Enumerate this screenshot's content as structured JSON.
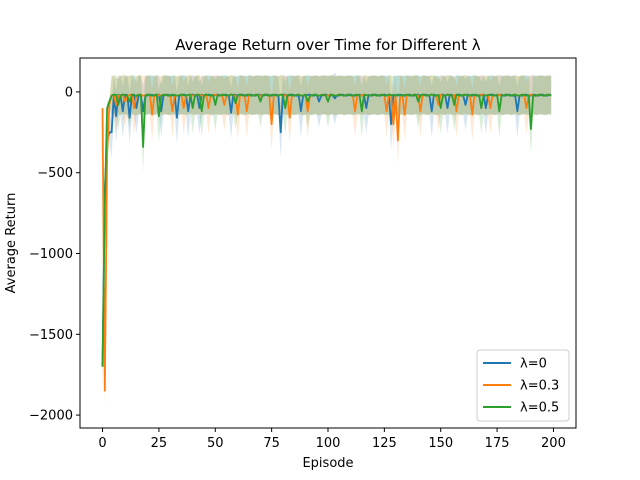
{
  "chart_data": {
    "type": "line",
    "title": "Average Return over Time for Different λ",
    "xlabel": "Episode",
    "ylabel": "Average Return",
    "xlim": [
      -10,
      210
    ],
    "ylim": [
      -2080,
      210
    ],
    "x_ticks": [
      0,
      25,
      50,
      75,
      100,
      125,
      150,
      175,
      200
    ],
    "y_ticks": [
      0,
      -500,
      -1000,
      -1500,
      -2000
    ],
    "x_tick_labels": [
      "0",
      "25",
      "50",
      "75",
      "100",
      "125",
      "150",
      "175",
      "200"
    ],
    "y_tick_labels": [
      "0",
      "−500",
      "−1000",
      "−1500",
      "−2000"
    ],
    "legend_position": "lower-right",
    "grid": false,
    "band_halfwidth": 120,
    "episodes": 200,
    "series": [
      {
        "name": "λ=0",
        "color": "#1f77b4",
        "start": [
          -1700,
          -600,
          -300,
          -250
        ],
        "base": -20,
        "dips": [
          [
            4,
            -250
          ],
          [
            6,
            -150
          ],
          [
            9,
            -120
          ],
          [
            12,
            -160
          ],
          [
            15,
            -100
          ],
          [
            18,
            -120
          ],
          [
            26,
            -120
          ],
          [
            33,
            -160
          ],
          [
            38,
            -120
          ],
          [
            43,
            -100
          ],
          [
            57,
            -130
          ],
          [
            79,
            -250
          ],
          [
            88,
            -120
          ],
          [
            96,
            -60
          ],
          [
            103,
            -40
          ],
          [
            117,
            -100
          ],
          [
            128,
            -200
          ],
          [
            146,
            -120
          ],
          [
            153,
            -100
          ],
          [
            161,
            -80
          ],
          [
            170,
            -100
          ],
          [
            184,
            -120
          ]
        ]
      },
      {
        "name": "λ=0.3",
        "color": "#ff7f0e",
        "start": [
          -100,
          -1850,
          -400,
          -80
        ],
        "base": -20,
        "dips": [
          [
            6,
            -80
          ],
          [
            10,
            -60
          ],
          [
            14,
            -100
          ],
          [
            22,
            -140
          ],
          [
            31,
            -120
          ],
          [
            36,
            -100
          ],
          [
            47,
            -100
          ],
          [
            54,
            -80
          ],
          [
            60,
            -140
          ],
          [
            64,
            -120
          ],
          [
            75,
            -200
          ],
          [
            83,
            -160
          ],
          [
            91,
            -120
          ],
          [
            112,
            -120
          ],
          [
            126,
            -120
          ],
          [
            129,
            -200
          ],
          [
            131,
            -300
          ],
          [
            134,
            -140
          ],
          [
            141,
            -120
          ],
          [
            149,
            -80
          ],
          [
            157,
            -120
          ],
          [
            164,
            -140
          ],
          [
            172,
            -100
          ],
          [
            188,
            -100
          ]
        ]
      },
      {
        "name": "λ=0.5",
        "color": "#2ca02c",
        "start": [
          -1700,
          -700,
          -100,
          -60
        ],
        "base": -20,
        "dips": [
          [
            7,
            -80
          ],
          [
            12,
            -60
          ],
          [
            18,
            -340
          ],
          [
            25,
            -150
          ],
          [
            40,
            -100
          ],
          [
            44,
            -120
          ],
          [
            50,
            -80
          ],
          [
            59,
            -70
          ],
          [
            70,
            -60
          ],
          [
            81,
            -100
          ],
          [
            91,
            -60
          ],
          [
            100,
            -60
          ],
          [
            115,
            -120
          ],
          [
            140,
            -60
          ],
          [
            150,
            -100
          ],
          [
            156,
            -80
          ],
          [
            168,
            -100
          ],
          [
            176,
            -120
          ],
          [
            190,
            -230
          ]
        ]
      }
    ]
  }
}
